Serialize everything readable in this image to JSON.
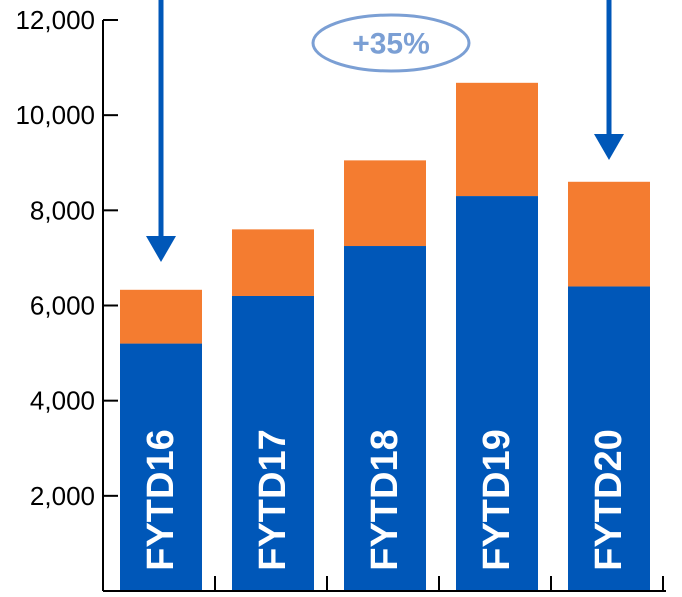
{
  "chart_data": {
    "type": "bar",
    "stacked": true,
    "categories": [
      "FYTD16",
      "FYTD17",
      "FYTD18",
      "FYTD19",
      "FYTD20"
    ],
    "series": [
      {
        "values": [
          5200,
          6200,
          7250,
          8300,
          6400
        ],
        "color": "#0057b8"
      },
      {
        "values": [
          1130,
          1400,
          1800,
          2380,
          2200
        ],
        "color": "#f47c30"
      }
    ],
    "y_ticks": [
      2000,
      4000,
      6000,
      8000,
      10000,
      12000
    ],
    "y_tick_labels": [
      "2,000",
      "4,000",
      "6,000",
      "8,000",
      "10,000",
      "12,000"
    ],
    "ylim": [
      0,
      12000
    ],
    "grid": false,
    "annotations": {
      "badge_text": "+35%",
      "arrows": [
        "FYTD16",
        "FYTD20"
      ]
    },
    "colors": {
      "axis": "#000000",
      "arrow": "#0057b8",
      "badge_border": "#7b9fd4",
      "badge_text": "#7b9fd4"
    }
  }
}
